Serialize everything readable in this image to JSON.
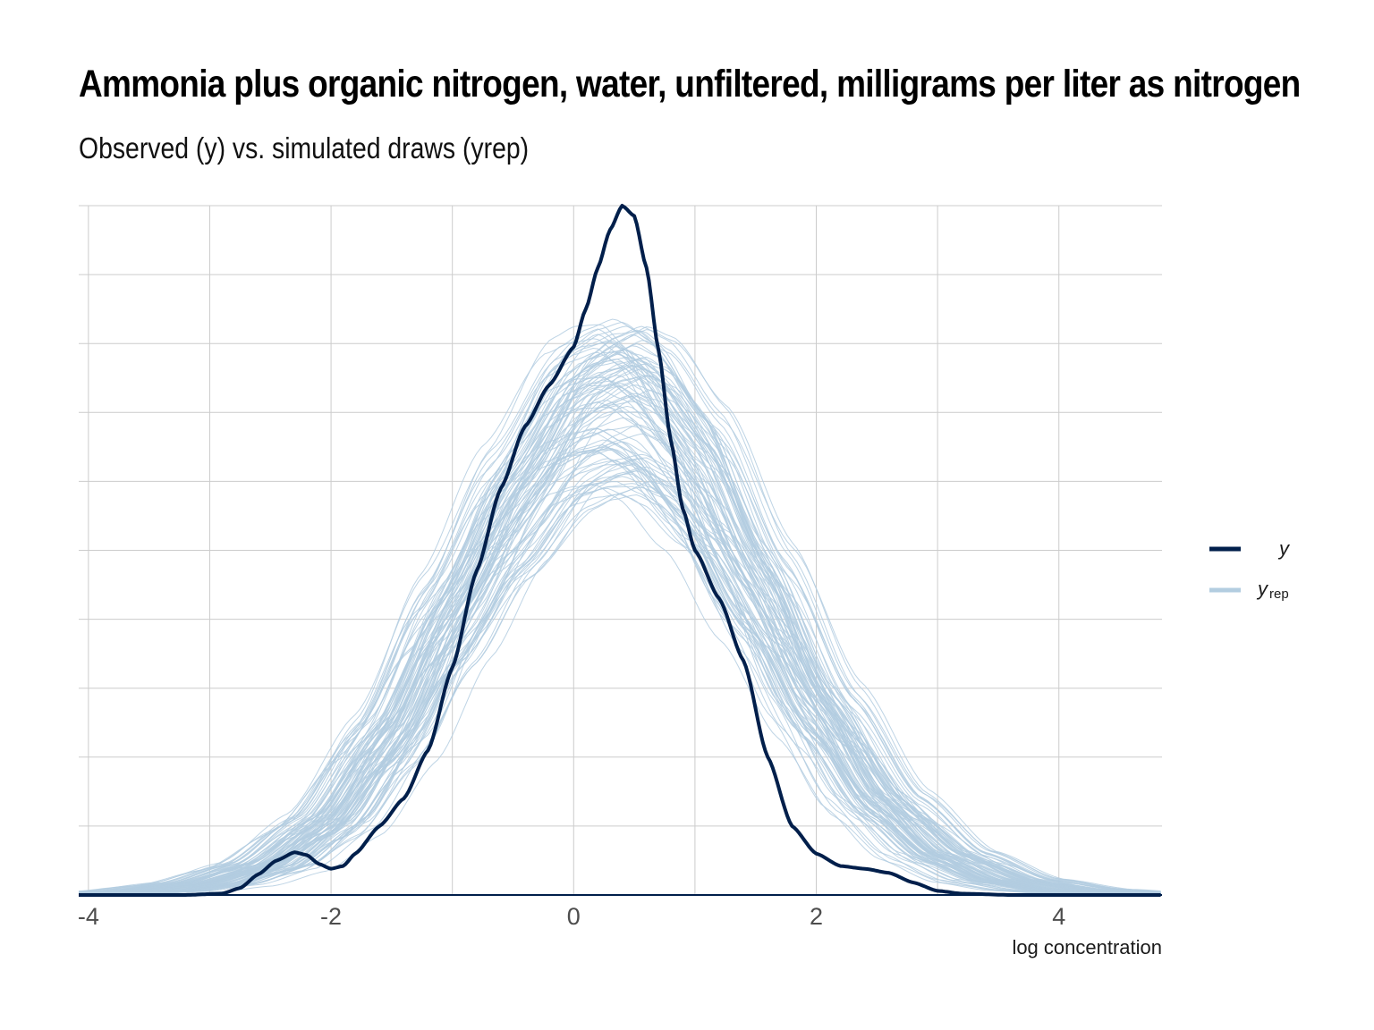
{
  "title": "Ammonia plus organic nitrogen, water, unfiltered, milligrams per liter as nitrogen",
  "subtitle": "Observed (y) vs. simulated draws (yrep)",
  "colors": {
    "y": "#011f4b",
    "yrep": "#b3cde0",
    "grid": "#cccccc"
  },
  "legend": {
    "position": "right",
    "items": [
      {
        "key": "y",
        "label": "y",
        "sub": ""
      },
      {
        "key": "yrep",
        "label": "y",
        "sub": "rep"
      }
    ]
  },
  "chart_data": {
    "type": "line",
    "title": "Ammonia plus organic nitrogen, water, unfiltered, milligrams per liter as nitrogen",
    "subtitle": "Observed (y) vs. simulated draws (yrep)",
    "xlabel": "log concentration",
    "ylabel": "",
    "xlim": [
      -4.08,
      4.85
    ],
    "ylim": [
      0,
      1.0
    ],
    "x_ticks": [
      -4,
      -2,
      0,
      2,
      4
    ],
    "x_tick_labels": [
      "-4",
      "-2",
      "0",
      "2",
      "4"
    ],
    "y_axis_labels_shown": false,
    "grid": true,
    "series": [
      {
        "name": "y",
        "role": "observed",
        "x": [
          -4.08,
          -3.2,
          -2.9,
          -2.75,
          -2.6,
          -2.45,
          -2.3,
          -2.2,
          -2.1,
          -2.0,
          -1.9,
          -1.8,
          -1.6,
          -1.4,
          -1.2,
          -1.0,
          -0.8,
          -0.6,
          -0.4,
          -0.2,
          0.0,
          0.1,
          0.2,
          0.3,
          0.4,
          0.5,
          0.6,
          0.7,
          0.8,
          0.9,
          1.0,
          1.2,
          1.4,
          1.6,
          1.8,
          2.0,
          2.2,
          2.4,
          2.6,
          2.8,
          3.0,
          3.2,
          3.6,
          4.0,
          4.85
        ],
        "y": [
          0.0,
          0.0,
          0.002,
          0.01,
          0.03,
          0.05,
          0.062,
          0.058,
          0.045,
          0.038,
          0.042,
          0.06,
          0.1,
          0.14,
          0.21,
          0.33,
          0.47,
          0.59,
          0.68,
          0.74,
          0.795,
          0.85,
          0.91,
          0.965,
          1.0,
          0.985,
          0.91,
          0.79,
          0.66,
          0.56,
          0.5,
          0.43,
          0.34,
          0.2,
          0.1,
          0.06,
          0.042,
          0.038,
          0.032,
          0.018,
          0.006,
          0.002,
          0.0,
          0.0,
          0.0
        ]
      },
      {
        "name": "yrep",
        "role": "simulated draws",
        "draws": 100,
        "x": [
          -4.08,
          -3.5,
          -3.0,
          -2.5,
          -2.0,
          -1.5,
          -1.0,
          -0.5,
          0.0,
          0.2,
          0.4,
          0.6,
          1.0,
          1.5,
          2.0,
          2.5,
          3.0,
          3.5,
          4.0,
          4.5,
          4.85
        ],
        "y_mean": [
          0.0,
          0.005,
          0.015,
          0.04,
          0.1,
          0.22,
          0.39,
          0.55,
          0.68,
          0.7,
          0.71,
          0.69,
          0.6,
          0.43,
          0.26,
          0.13,
          0.055,
          0.02,
          0.007,
          0.002,
          0.0
        ],
        "y_peak_range": [
          0.59,
          0.84
        ]
      }
    ]
  }
}
